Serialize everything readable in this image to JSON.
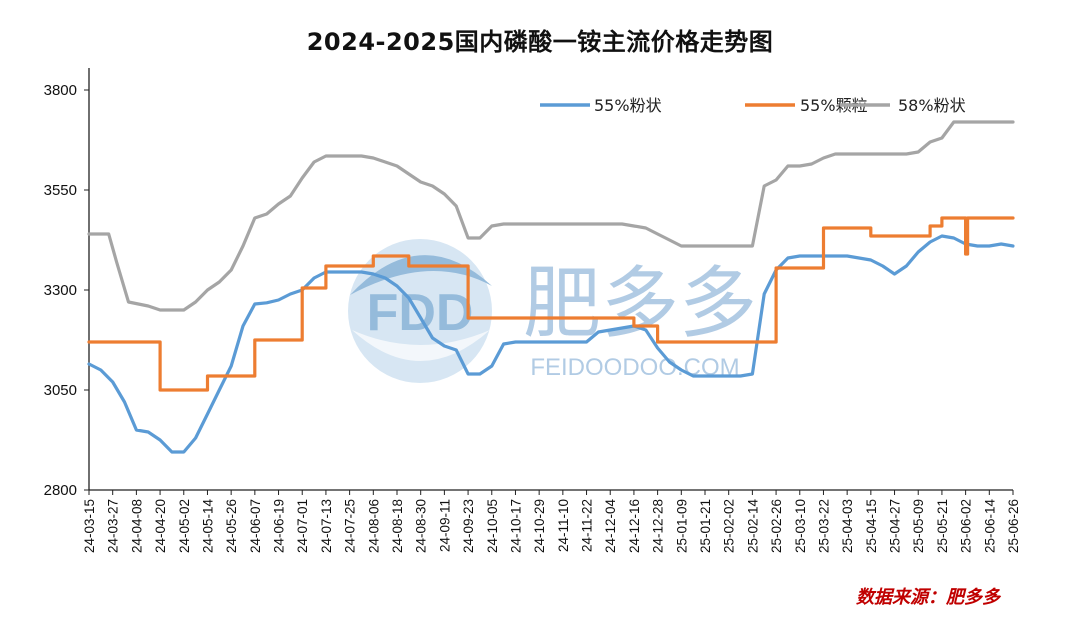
{
  "chart_data": {
    "type": "line",
    "title": "2024-2025国内磷酸一铵主流价格走势图",
    "xlabel": "",
    "ylabel": "",
    "ylim": [
      2800,
      3850
    ],
    "yticks": [
      2800,
      3050,
      3300,
      3550,
      3800
    ],
    "grid": false,
    "legend_position": "top-right",
    "x_tick_labels": [
      "24-03-15",
      "24-03-27",
      "24-04-08",
      "24-04-20",
      "24-05-02",
      "24-05-14",
      "24-05-26",
      "24-06-07",
      "24-06-19",
      "24-07-01",
      "24-07-13",
      "24-07-25",
      "24-08-06",
      "24-08-18",
      "24-08-30",
      "24-09-11",
      "24-09-23",
      "24-10-05",
      "24-10-17",
      "24-10-29",
      "24-11-10",
      "24-11-22",
      "24-12-04",
      "24-12-16",
      "24-12-28",
      "25-01-09",
      "25-01-21",
      "25-02-02",
      "25-02-14",
      "25-02-26",
      "25-03-10",
      "25-03-22",
      "25-04-03",
      "25-04-15",
      "25-04-27",
      "25-05-09",
      "25-05-21",
      "25-06-02",
      "25-06-14",
      "25-06-26"
    ],
    "series": [
      {
        "name": "55%粉状",
        "color": "#5b9bd5",
        "points": [
          [
            "24-03-15",
            3115
          ],
          [
            "24-03-21",
            3100
          ],
          [
            "24-03-27",
            3070
          ],
          [
            "24-04-02",
            3020
          ],
          [
            "24-04-08",
            2950
          ],
          [
            "24-04-14",
            2945
          ],
          [
            "24-04-20",
            2925
          ],
          [
            "24-04-26",
            2895
          ],
          [
            "24-05-02",
            2895
          ],
          [
            "24-05-08",
            2930
          ],
          [
            "24-05-14",
            2990
          ],
          [
            "24-05-20",
            3050
          ],
          [
            "24-05-26",
            3110
          ],
          [
            "24-06-01",
            3210
          ],
          [
            "24-06-07",
            3265
          ],
          [
            "24-06-13",
            3268
          ],
          [
            "24-06-19",
            3275
          ],
          [
            "24-06-25",
            3290
          ],
          [
            "24-07-01",
            3300
          ],
          [
            "24-07-07",
            3330
          ],
          [
            "24-07-13",
            3345
          ],
          [
            "24-07-19",
            3345
          ],
          [
            "24-07-25",
            3345
          ],
          [
            "24-07-31",
            3345
          ],
          [
            "24-08-06",
            3340
          ],
          [
            "24-08-12",
            3330
          ],
          [
            "24-08-18",
            3310
          ],
          [
            "24-08-24",
            3280
          ],
          [
            "24-08-30",
            3230
          ],
          [
            "24-09-05",
            3180
          ],
          [
            "24-09-11",
            3160
          ],
          [
            "24-09-17",
            3150
          ],
          [
            "24-09-23",
            3090
          ],
          [
            "24-09-29",
            3090
          ],
          [
            "24-10-05",
            3110
          ],
          [
            "24-10-11",
            3165
          ],
          [
            "24-10-17",
            3170
          ],
          [
            "24-10-23",
            3170
          ],
          [
            "24-10-29",
            3170
          ],
          [
            "24-11-04",
            3170
          ],
          [
            "24-11-10",
            3170
          ],
          [
            "24-11-16",
            3170
          ],
          [
            "24-11-22",
            3170
          ],
          [
            "24-11-28",
            3195
          ],
          [
            "24-12-04",
            3200
          ],
          [
            "24-12-10",
            3205
          ],
          [
            "24-12-16",
            3210
          ],
          [
            "24-12-22",
            3200
          ],
          [
            "24-12-28",
            3155
          ],
          [
            "25-01-03",
            3120
          ],
          [
            "25-01-09",
            3100
          ],
          [
            "25-01-15",
            3085
          ],
          [
            "25-01-21",
            3085
          ],
          [
            "25-01-27",
            3085
          ],
          [
            "25-02-02",
            3085
          ],
          [
            "25-02-08",
            3085
          ],
          [
            "25-02-14",
            3090
          ],
          [
            "25-02-20",
            3290
          ],
          [
            "25-02-26",
            3350
          ],
          [
            "25-03-04",
            3380
          ],
          [
            "25-03-10",
            3385
          ],
          [
            "25-03-16",
            3385
          ],
          [
            "25-03-22",
            3385
          ],
          [
            "25-03-28",
            3385
          ],
          [
            "25-04-03",
            3385
          ],
          [
            "25-04-09",
            3380
          ],
          [
            "25-04-15",
            3375
          ],
          [
            "25-04-21",
            3360
          ],
          [
            "25-04-27",
            3340
          ],
          [
            "25-05-03",
            3360
          ],
          [
            "25-05-09",
            3395
          ],
          [
            "25-05-15",
            3420
          ],
          [
            "25-05-21",
            3435
          ],
          [
            "25-05-27",
            3430
          ],
          [
            "25-06-02",
            3415
          ],
          [
            "25-06-08",
            3410
          ],
          [
            "25-06-14",
            3410
          ],
          [
            "25-06-20",
            3415
          ],
          [
            "25-06-26",
            3410
          ]
        ]
      },
      {
        "name": "55%颗粒",
        "color": "#ed7d31",
        "points": [
          [
            "24-03-15",
            3170
          ],
          [
            "24-04-20",
            3170
          ],
          [
            "24-04-20",
            3050
          ],
          [
            "24-05-14",
            3050
          ],
          [
            "24-05-14",
            3085
          ],
          [
            "24-06-07",
            3085
          ],
          [
            "24-06-07",
            3175
          ],
          [
            "24-07-01",
            3175
          ],
          [
            "24-07-01",
            3305
          ],
          [
            "24-07-13",
            3305
          ],
          [
            "24-07-13",
            3360
          ],
          [
            "24-08-06",
            3360
          ],
          [
            "24-08-06",
            3385
          ],
          [
            "24-08-24",
            3385
          ],
          [
            "24-08-24",
            3360
          ],
          [
            "24-09-23",
            3360
          ],
          [
            "24-09-23",
            3230
          ],
          [
            "24-12-16",
            3230
          ],
          [
            "24-12-16",
            3210
          ],
          [
            "24-12-28",
            3210
          ],
          [
            "24-12-28",
            3170
          ],
          [
            "25-02-26",
            3170
          ],
          [
            "25-02-26",
            3355
          ],
          [
            "25-03-22",
            3355
          ],
          [
            "25-03-22",
            3455
          ],
          [
            "25-04-15",
            3455
          ],
          [
            "25-04-15",
            3435
          ],
          [
            "25-05-15",
            3435
          ],
          [
            "25-05-15",
            3460
          ],
          [
            "25-05-21",
            3460
          ],
          [
            "25-05-21",
            3480
          ],
          [
            "25-06-02",
            3480
          ],
          [
            "25-06-02",
            3390
          ],
          [
            "25-06-03",
            3390
          ],
          [
            "25-06-03",
            3480
          ],
          [
            "25-06-26",
            3480
          ]
        ]
      },
      {
        "name": "58%粉状",
        "color": "#a5a5a5",
        "points": [
          [
            "24-03-15",
            3440
          ],
          [
            "24-03-25",
            3440
          ],
          [
            "24-03-29",
            3370
          ],
          [
            "24-04-04",
            3270
          ],
          [
            "24-04-14",
            3260
          ],
          [
            "24-04-20",
            3250
          ],
          [
            "24-05-02",
            3250
          ],
          [
            "24-05-08",
            3270
          ],
          [
            "24-05-14",
            3300
          ],
          [
            "24-05-20",
            3320
          ],
          [
            "24-05-26",
            3350
          ],
          [
            "24-06-01",
            3410
          ],
          [
            "24-06-07",
            3480
          ],
          [
            "24-06-13",
            3490
          ],
          [
            "24-06-19",
            3515
          ],
          [
            "24-06-25",
            3535
          ],
          [
            "24-07-01",
            3580
          ],
          [
            "24-07-07",
            3620
          ],
          [
            "24-07-13",
            3635
          ],
          [
            "24-07-19",
            3635
          ],
          [
            "24-07-25",
            3635
          ],
          [
            "24-07-31",
            3635
          ],
          [
            "24-08-06",
            3630
          ],
          [
            "24-08-12",
            3620
          ],
          [
            "24-08-18",
            3610
          ],
          [
            "24-08-24",
            3590
          ],
          [
            "24-08-30",
            3570
          ],
          [
            "24-09-05",
            3560
          ],
          [
            "24-09-11",
            3540
          ],
          [
            "24-09-17",
            3510
          ],
          [
            "24-09-23",
            3430
          ],
          [
            "24-09-29",
            3430
          ],
          [
            "24-10-05",
            3460
          ],
          [
            "24-10-11",
            3465
          ],
          [
            "24-10-17",
            3465
          ],
          [
            "24-10-23",
            3465
          ],
          [
            "24-10-29",
            3465
          ],
          [
            "24-11-04",
            3465
          ],
          [
            "24-11-10",
            3465
          ],
          [
            "24-11-16",
            3465
          ],
          [
            "24-11-22",
            3465
          ],
          [
            "24-11-28",
            3465
          ],
          [
            "24-12-04",
            3465
          ],
          [
            "24-12-10",
            3465
          ],
          [
            "24-12-16",
            3460
          ],
          [
            "24-12-22",
            3455
          ],
          [
            "24-12-28",
            3440
          ],
          [
            "25-01-03",
            3425
          ],
          [
            "25-01-09",
            3410
          ],
          [
            "25-01-15",
            3410
          ],
          [
            "25-01-21",
            3410
          ],
          [
            "25-01-27",
            3410
          ],
          [
            "25-02-02",
            3410
          ],
          [
            "25-02-08",
            3410
          ],
          [
            "25-02-14",
            3410
          ],
          [
            "25-02-20",
            3560
          ],
          [
            "25-02-26",
            3575
          ],
          [
            "25-03-04",
            3610
          ],
          [
            "25-03-10",
            3610
          ],
          [
            "25-03-16",
            3615
          ],
          [
            "25-03-22",
            3630
          ],
          [
            "25-03-28",
            3640
          ],
          [
            "25-04-03",
            3640
          ],
          [
            "25-04-09",
            3640
          ],
          [
            "25-04-15",
            3640
          ],
          [
            "25-04-21",
            3640
          ],
          [
            "25-04-27",
            3640
          ],
          [
            "25-05-03",
            3640
          ],
          [
            "25-05-09",
            3645
          ],
          [
            "25-05-15",
            3670
          ],
          [
            "25-05-21",
            3680
          ],
          [
            "25-05-27",
            3720
          ],
          [
            "25-06-02",
            3720
          ],
          [
            "25-06-08",
            3720
          ],
          [
            "25-06-14",
            3720
          ],
          [
            "25-06-20",
            3720
          ],
          [
            "25-06-26",
            3720
          ]
        ]
      }
    ]
  },
  "watermark": {
    "logo_text": "FDD",
    "brand_text": "肥多多",
    "url_text": "FEIDOODOO.COM",
    "colors": {
      "dark": "#8ab4d8",
      "light": "#d3e4f2"
    }
  },
  "source_note": "数据来源：肥多多"
}
